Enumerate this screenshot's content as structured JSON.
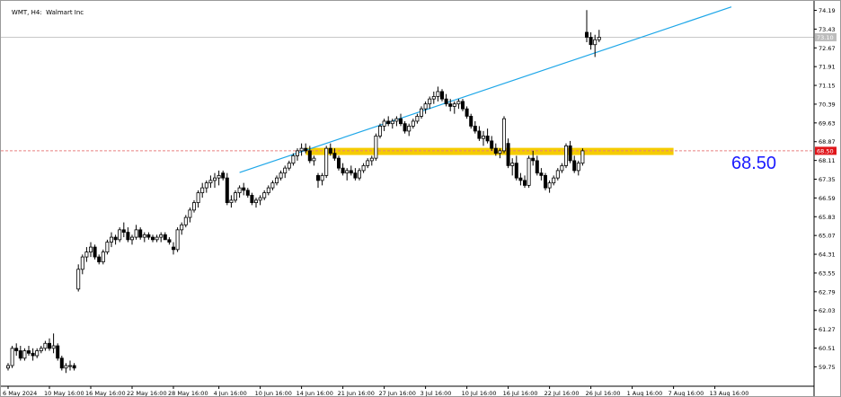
{
  "window": {
    "symbol": "WMT",
    "timeframe": "H4",
    "description": "Walmart Inc"
  },
  "annotation": {
    "level_text": "68.50",
    "price_tag_current": "73.10",
    "price_tag_level": "68.50"
  },
  "colors": {
    "background": "#ffffff",
    "candle": "#000000",
    "zone": "#f5cc00",
    "trendline": "#1ea7e8",
    "level_line": "#e88080",
    "current_price_line": "#c8c8c8",
    "price_tag_level": "#e0161b",
    "price_tag_current": "#bdbdbd",
    "big_label": "#1a1aff"
  },
  "chart_data": {
    "type": "candlestick",
    "title": "WMT, H4:  Walmart Inc",
    "ylim": [
      59.0,
      74.5
    ],
    "y_ticks": [
      "74.19",
      "73.43",
      "72.67",
      "71.91",
      "71.15",
      "70.39",
      "69.63",
      "68.87",
      "68.11",
      "67.35",
      "66.59",
      "65.83",
      "65.07",
      "64.31",
      "63.55",
      "62.79",
      "62.03",
      "61.27",
      "60.51",
      "59.75"
    ],
    "x_ticks": [
      "6 May 2024",
      "10 May 16:00",
      "16 May 16:00",
      "22 May 16:00",
      "28 May 16:00",
      "4 Jun 16:00",
      "10 Jun 16:00",
      "14 Jun 16:00",
      "21 Jun 16:00",
      "27 Jun 16:00",
      "3 Jul 16:00",
      "10 Jul 16:00",
      "16 Jul 16:00",
      "22 Jul 16:00",
      "26 Jul 16:00",
      "1 Aug 16:00",
      "7 Aug 16:00",
      "13 Aug 16:00"
    ],
    "x_tick_positions_index": [
      0,
      10,
      20,
      30,
      40,
      51,
      61,
      71,
      81,
      91,
      101,
      111,
      121,
      131,
      141,
      151,
      161,
      171
    ],
    "support_zone": [
      68.33,
      68.62
    ],
    "horizontal_level": 68.5,
    "current_price": 73.1,
    "trendline": {
      "from": {
        "index": 56,
        "price": 67.62
      },
      "to": {
        "index": 175,
        "price": 74.33
      }
    },
    "candles": [
      [
        59.7,
        59.9,
        59.6,
        59.8
      ],
      [
        59.8,
        60.6,
        59.7,
        60.5
      ],
      [
        60.5,
        60.7,
        60.2,
        60.4
      ],
      [
        60.4,
        60.6,
        60.0,
        60.1
      ],
      [
        60.1,
        60.5,
        60.0,
        60.4
      ],
      [
        60.4,
        60.6,
        60.2,
        60.3
      ],
      [
        60.3,
        60.5,
        60.0,
        60.2
      ],
      [
        60.2,
        60.5,
        60.1,
        60.4
      ],
      [
        60.4,
        60.6,
        60.3,
        60.5
      ],
      [
        60.5,
        60.8,
        60.4,
        60.7
      ],
      [
        60.7,
        60.9,
        60.4,
        60.5
      ],
      [
        60.5,
        61.1,
        60.3,
        60.6
      ],
      [
        60.6,
        60.7,
        60.0,
        60.1
      ],
      [
        60.1,
        60.2,
        59.6,
        59.7
      ],
      [
        59.7,
        59.9,
        59.5,
        59.8
      ],
      [
        59.8,
        60.0,
        59.6,
        59.8
      ],
      [
        59.8,
        59.9,
        59.6,
        59.7
      ],
      [
        62.9,
        63.9,
        62.8,
        63.7
      ],
      [
        63.7,
        64.3,
        63.5,
        64.2
      ],
      [
        64.2,
        64.6,
        64.0,
        64.4
      ],
      [
        64.4,
        64.8,
        64.2,
        64.6
      ],
      [
        64.6,
        64.7,
        64.1,
        64.2
      ],
      [
        64.2,
        64.3,
        63.9,
        64.0
      ],
      [
        64.0,
        64.5,
        63.9,
        64.4
      ],
      [
        64.4,
        64.9,
        64.3,
        64.8
      ],
      [
        64.8,
        65.2,
        64.6,
        65.0
      ],
      [
        65.0,
        65.1,
        64.7,
        64.9
      ],
      [
        64.9,
        65.4,
        64.8,
        65.3
      ],
      [
        65.3,
        65.6,
        65.0,
        65.2
      ],
      [
        65.2,
        65.4,
        64.8,
        64.9
      ],
      [
        64.9,
        65.1,
        64.7,
        65.0
      ],
      [
        65.0,
        65.5,
        64.9,
        65.3
      ],
      [
        65.3,
        65.4,
        64.9,
        65.0
      ],
      [
        65.0,
        65.2,
        64.8,
        65.1
      ],
      [
        65.1,
        65.2,
        64.9,
        65.0
      ],
      [
        65.0,
        65.1,
        64.8,
        64.9
      ],
      [
        64.9,
        65.1,
        64.8,
        65.0
      ],
      [
        65.0,
        65.2,
        64.8,
        65.1
      ],
      [
        65.1,
        65.2,
        64.9,
        64.9
      ],
      [
        64.9,
        65.0,
        64.7,
        64.8
      ],
      [
        64.6,
        64.8,
        64.3,
        64.5
      ],
      [
        64.5,
        65.4,
        64.4,
        65.3
      ],
      [
        65.3,
        65.6,
        65.1,
        65.5
      ],
      [
        65.5,
        65.9,
        65.4,
        65.8
      ],
      [
        65.8,
        66.2,
        65.6,
        66.1
      ],
      [
        66.1,
        66.5,
        66.0,
        66.4
      ],
      [
        66.4,
        66.9,
        66.2,
        66.8
      ],
      [
        66.8,
        67.2,
        66.6,
        67.0
      ],
      [
        67.0,
        67.3,
        66.8,
        67.2
      ],
      [
        67.2,
        67.5,
        67.0,
        67.3
      ],
      [
        67.3,
        67.6,
        67.0,
        67.4
      ],
      [
        67.4,
        67.7,
        67.1,
        67.5
      ],
      [
        67.6,
        67.7,
        67.3,
        67.4
      ],
      [
        67.4,
        67.6,
        66.3,
        66.4
      ],
      [
        66.4,
        66.7,
        66.2,
        66.5
      ],
      [
        66.5,
        66.9,
        66.4,
        66.8
      ],
      [
        66.8,
        67.1,
        66.6,
        67.0
      ],
      [
        67.0,
        67.2,
        66.7,
        66.9
      ],
      [
        66.9,
        67.0,
        66.6,
        66.7
      ],
      [
        66.7,
        66.8,
        66.3,
        66.4
      ],
      [
        66.4,
        66.6,
        66.2,
        66.5
      ],
      [
        66.5,
        66.7,
        66.3,
        66.6
      ],
      [
        66.6,
        66.9,
        66.5,
        66.8
      ],
      [
        66.8,
        67.1,
        66.7,
        67.0
      ],
      [
        67.0,
        67.3,
        66.9,
        67.2
      ],
      [
        67.2,
        67.5,
        67.1,
        67.4
      ],
      [
        67.4,
        67.7,
        67.3,
        67.6
      ],
      [
        67.6,
        67.9,
        67.4,
        67.8
      ],
      [
        67.8,
        68.1,
        67.7,
        68.0
      ],
      [
        68.0,
        68.4,
        67.9,
        68.3
      ],
      [
        68.3,
        68.6,
        68.1,
        68.5
      ],
      [
        68.5,
        68.8,
        68.3,
        68.6
      ],
      [
        68.6,
        68.8,
        68.4,
        68.5
      ],
      [
        68.5,
        68.7,
        68.0,
        68.1
      ],
      [
        68.1,
        68.3,
        67.9,
        68.2
      ],
      [
        67.5,
        67.6,
        67.0,
        67.3
      ],
      [
        67.3,
        67.6,
        67.1,
        67.5
      ],
      [
        67.5,
        68.7,
        67.4,
        68.6
      ],
      [
        68.6,
        68.8,
        68.3,
        68.4
      ],
      [
        68.4,
        68.6,
        68.1,
        68.2
      ],
      [
        68.2,
        68.3,
        67.7,
        67.8
      ],
      [
        67.8,
        68.0,
        67.5,
        67.6
      ],
      [
        67.6,
        67.8,
        67.3,
        67.7
      ],
      [
        67.7,
        67.9,
        67.5,
        67.6
      ],
      [
        67.6,
        67.8,
        67.3,
        67.4
      ],
      [
        67.4,
        67.8,
        67.3,
        67.7
      ],
      [
        67.7,
        68.0,
        67.6,
        67.9
      ],
      [
        67.9,
        68.2,
        67.8,
        68.1
      ],
      [
        68.1,
        68.3,
        67.9,
        68.2
      ],
      [
        68.2,
        69.2,
        68.1,
        69.1
      ],
      [
        69.1,
        69.6,
        69.0,
        69.5
      ],
      [
        69.5,
        69.8,
        69.3,
        69.7
      ],
      [
        69.7,
        69.9,
        69.5,
        69.6
      ],
      [
        69.6,
        69.8,
        69.4,
        69.7
      ],
      [
        69.7,
        69.9,
        69.5,
        69.8
      ],
      [
        69.8,
        70.0,
        69.5,
        69.6
      ],
      [
        69.6,
        69.7,
        69.2,
        69.3
      ],
      [
        69.3,
        69.6,
        69.1,
        69.5
      ],
      [
        69.5,
        69.8,
        69.4,
        69.7
      ],
      [
        69.7,
        70.0,
        69.6,
        69.9
      ],
      [
        69.9,
        70.3,
        69.8,
        70.2
      ],
      [
        70.2,
        70.5,
        70.0,
        70.4
      ],
      [
        70.4,
        70.7,
        70.2,
        70.6
      ],
      [
        70.6,
        70.9,
        70.4,
        70.7
      ],
      [
        70.7,
        71.1,
        70.5,
        70.9
      ],
      [
        70.9,
        71.0,
        70.5,
        70.6
      ],
      [
        70.6,
        70.8,
        70.3,
        70.4
      ],
      [
        70.4,
        70.6,
        70.1,
        70.3
      ],
      [
        70.3,
        70.5,
        70.0,
        70.4
      ],
      [
        70.4,
        70.6,
        70.2,
        70.5
      ],
      [
        70.5,
        70.6,
        70.1,
        70.2
      ],
      [
        70.2,
        70.3,
        69.8,
        69.9
      ],
      [
        69.9,
        70.0,
        69.4,
        69.5
      ],
      [
        69.5,
        69.7,
        69.2,
        69.3
      ],
      [
        69.3,
        69.5,
        68.9,
        69.0
      ],
      [
        69.0,
        69.3,
        68.7,
        69.1
      ],
      [
        69.1,
        69.4,
        68.8,
        68.9
      ],
      [
        68.9,
        69.1,
        68.5,
        68.6
      ],
      [
        68.6,
        68.8,
        68.3,
        68.4
      ],
      [
        68.4,
        68.6,
        68.2,
        68.5
      ],
      [
        68.5,
        69.9,
        68.4,
        69.8
      ],
      [
        68.8,
        69.0,
        67.8,
        67.9
      ],
      [
        67.9,
        68.2,
        67.5,
        68.0
      ],
      [
        68.0,
        68.3,
        67.3,
        67.4
      ],
      [
        67.4,
        67.6,
        67.1,
        67.3
      ],
      [
        67.3,
        67.5,
        67.0,
        67.1
      ],
      [
        67.1,
        68.3,
        67.0,
        68.2
      ],
      [
        68.2,
        68.5,
        67.9,
        68.1
      ],
      [
        68.1,
        68.3,
        67.5,
        67.6
      ],
      [
        67.6,
        67.8,
        67.3,
        67.5
      ],
      [
        67.5,
        67.6,
        66.9,
        67.0
      ],
      [
        67.0,
        67.3,
        66.8,
        67.2
      ],
      [
        67.2,
        67.5,
        67.1,
        67.4
      ],
      [
        67.4,
        67.8,
        67.3,
        67.7
      ],
      [
        67.7,
        68.0,
        67.6,
        67.9
      ],
      [
        67.9,
        68.8,
        67.8,
        68.7
      ],
      [
        68.7,
        68.9,
        68.0,
        68.1
      ],
      [
        68.1,
        68.3,
        67.6,
        67.7
      ],
      [
        67.7,
        68.1,
        67.5,
        68.0
      ],
      [
        68.0,
        68.6,
        67.9,
        68.5
      ],
      [
        73.3,
        74.2,
        72.9,
        73.1
      ],
      [
        73.1,
        73.3,
        72.6,
        72.8
      ],
      [
        72.8,
        73.2,
        72.3,
        73.0
      ],
      [
        73.0,
        73.4,
        72.9,
        73.1
      ]
    ]
  }
}
